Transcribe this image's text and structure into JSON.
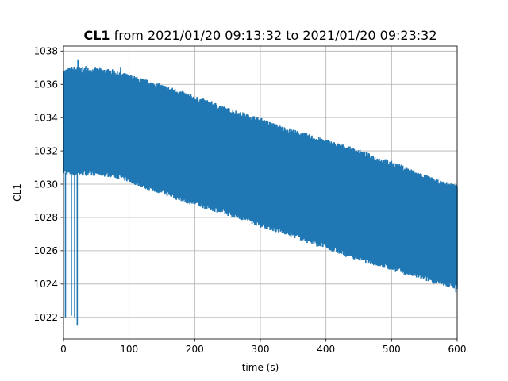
{
  "chart_data": {
    "type": "line",
    "title_bold": "CL1",
    "title_rest": " from 2021/01/20 09:13:32 to 2021/01/20 09:23:32",
    "xlabel": "time (s)",
    "ylabel": "CL1",
    "xlim": [
      0,
      600
    ],
    "ylim": [
      1020.7,
      1038.3
    ],
    "x_ticks": [
      0,
      100,
      200,
      300,
      400,
      500,
      600
    ],
    "y_ticks": [
      1022,
      1024,
      1026,
      1028,
      1030,
      1032,
      1034,
      1036,
      1038
    ],
    "grid": true,
    "line_color": "#1f77b4",
    "series": [
      {
        "x": [
          0,
          10,
          20,
          30,
          50,
          75,
          100,
          125,
          150,
          175,
          200,
          225,
          250,
          275,
          300,
          325,
          350,
          375,
          400,
          425,
          450,
          475,
          500,
          525,
          550,
          575,
          600
        ],
        "upper": [
          1036.8,
          1036.9,
          1037.0,
          1036.9,
          1036.9,
          1036.8,
          1036.5,
          1036.2,
          1035.9,
          1035.6,
          1035.2,
          1034.9,
          1034.5,
          1034.2,
          1033.9,
          1033.5,
          1033.2,
          1032.9,
          1032.6,
          1032.3,
          1032.0,
          1031.6,
          1031.3,
          1030.9,
          1030.5,
          1030.1,
          1029.9
        ],
        "lower": [
          1030.7,
          1030.6,
          1030.6,
          1030.6,
          1030.6,
          1030.5,
          1030.2,
          1029.8,
          1029.5,
          1029.1,
          1028.8,
          1028.5,
          1028.2,
          1027.9,
          1027.5,
          1027.2,
          1026.9,
          1026.5,
          1026.2,
          1025.8,
          1025.5,
          1025.2,
          1024.9,
          1024.6,
          1024.3,
          1024.0,
          1023.8
        ]
      }
    ],
    "dropouts": [
      {
        "x": 3,
        "y": 1022.0
      },
      {
        "x": 12,
        "y": 1022.1
      },
      {
        "x": 17,
        "y": 1022.0
      },
      {
        "x": 21,
        "y": 1021.5
      },
      {
        "x": 22,
        "y": 1037.5
      },
      {
        "x": 34,
        "y": 1037.1
      },
      {
        "x": 87,
        "y": 1037.0
      },
      {
        "x": 598,
        "y": 1023.5
      }
    ]
  }
}
